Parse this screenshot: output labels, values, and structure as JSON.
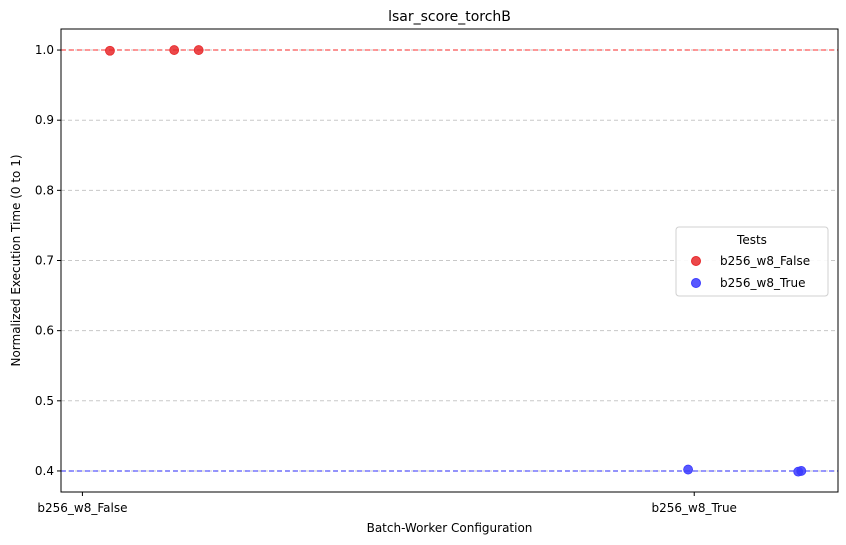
{
  "chart_data": {
    "type": "scatter",
    "title": "lsar_score_torchB",
    "xlabel": "Batch-Worker Configuration",
    "ylabel": "Normalized Execution Time (0 to 1)",
    "ylim": [
      0.37,
      1.03
    ],
    "yticks": [
      "0.4",
      "0.5",
      "0.6",
      "0.7",
      "0.8",
      "0.9",
      "1.0"
    ],
    "categories": [
      "b256_w8_False",
      "b256_w8_True"
    ],
    "grid": "horizontal-dashed",
    "legend": {
      "title": "Tests",
      "placement": "center-right"
    },
    "reference_lines": [
      {
        "y": 1.0,
        "color": "#ff0000"
      },
      {
        "y": 0.4,
        "color": "#0000ff"
      }
    ],
    "series": [
      {
        "name": "b256_w8_False",
        "color": "#e8282a",
        "points": [
          {
            "x": 0.045,
            "y": 0.999
          },
          {
            "x": 0.15,
            "y": 1.0
          },
          {
            "x": 0.19,
            "y": 1.0
          }
        ]
      },
      {
        "name": "b256_w8_True",
        "color": "#3b3bff",
        "points": [
          {
            "x": 0.99,
            "y": 0.402
          },
          {
            "x": 1.17,
            "y": 0.399
          },
          {
            "x": 1.175,
            "y": 0.4
          }
        ]
      }
    ]
  }
}
